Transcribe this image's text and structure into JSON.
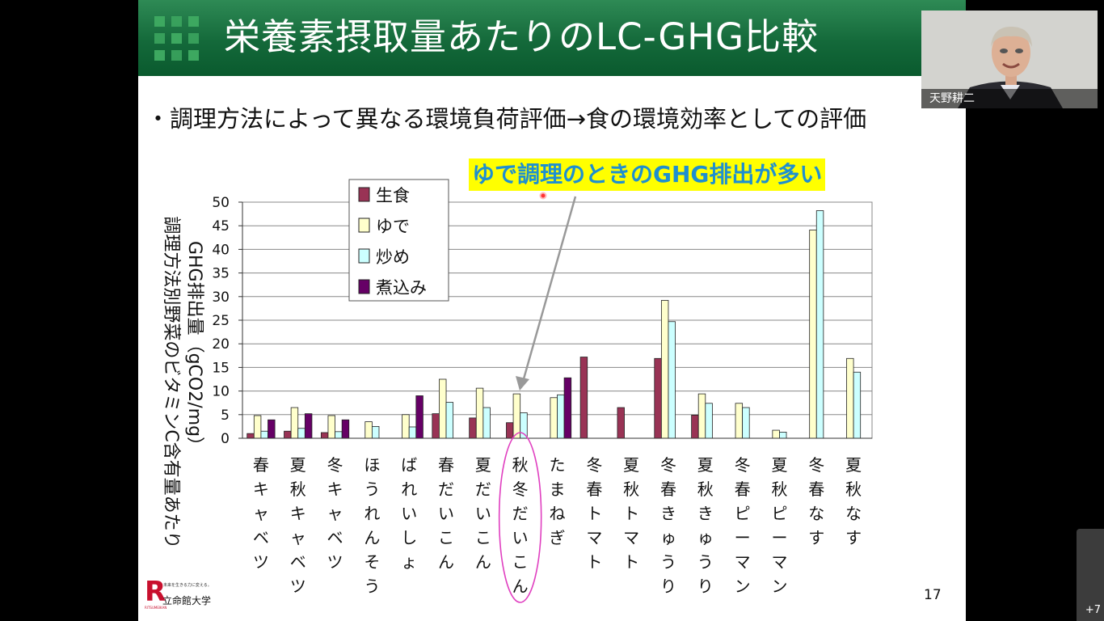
{
  "slide": {
    "title": "栄養素摂取量あたりのLC-GHG比較",
    "bullet": "・調理方法によって異なる環境負荷評価→食の環境効率としての評価",
    "callout": "ゆで調理のときのGHG排出が多い",
    "page_number": "17",
    "logo_squares_color": "#3da860"
  },
  "university": {
    "logo_letter": "R",
    "tagline": "未来を生きる力に変える。",
    "name": "立命館大学",
    "name_en": "RITSUMEIKAN"
  },
  "chart_data": {
    "type": "bar",
    "ylabel_lines": [
      "調理方法別野菜のビタミンC含有量あたり",
      "GHG排出量（gCO2/mg）"
    ],
    "ylim": [
      0,
      50
    ],
    "yticks": [
      0,
      5,
      10,
      15,
      20,
      25,
      30,
      35,
      40,
      45,
      50
    ],
    "grid": true,
    "legend_position": "top-left",
    "categories": [
      "春キャベツ",
      "夏秋キャベツ",
      "冬キャベツ",
      "ほうれんそう",
      "ばれいしょ",
      "春だいこん",
      "夏だいこん",
      "秋冬だいこん",
      "たまねぎ",
      "冬春トマト",
      "夏秋トマト",
      "冬春きゅうり",
      "夏秋きゅうり",
      "冬春ピーマン",
      "夏秋ピーマン",
      "冬春なす",
      "夏秋なす"
    ],
    "highlighted_category": "秋冬だいこん",
    "series": [
      {
        "name": "生食",
        "color": "#993355",
        "values": [
          1.0,
          1.5,
          1.2,
          0,
          0,
          5.2,
          4.3,
          3.3,
          0,
          17.2,
          6.5,
          16.9,
          4.9,
          0,
          0,
          0,
          0
        ]
      },
      {
        "name": "ゆで",
        "color": "#ffffcc",
        "values": [
          4.8,
          6.5,
          4.8,
          3.5,
          5.0,
          12.5,
          10.6,
          9.4,
          8.6,
          0,
          0,
          29.2,
          9.4,
          7.4,
          1.7,
          44.1,
          16.9
        ]
      },
      {
        "name": "炒め",
        "color": "#ccffff",
        "values": [
          1.5,
          2.1,
          1.4,
          2.5,
          2.4,
          7.6,
          6.5,
          5.4,
          9.2,
          0,
          0,
          24.7,
          7.4,
          6.5,
          1.3,
          48.2,
          14.0
        ]
      },
      {
        "name": "煮込み",
        "color": "#660066",
        "values": [
          3.9,
          5.2,
          3.9,
          0,
          9.0,
          0,
          0,
          0,
          12.8,
          0,
          0,
          0,
          0,
          0,
          0,
          0,
          0
        ]
      }
    ]
  },
  "video": {
    "participant_name": "天野耕二",
    "more_count": "+7"
  }
}
